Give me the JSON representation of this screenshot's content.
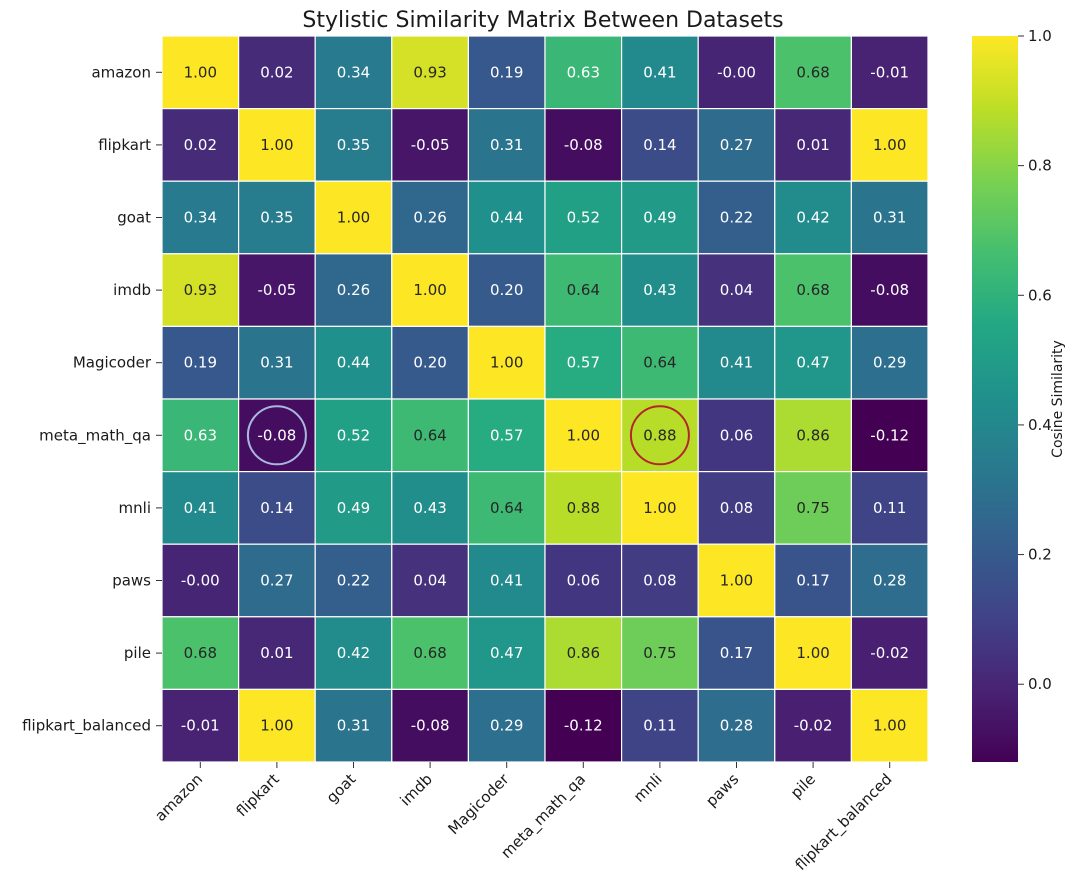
{
  "chart_data": {
    "type": "heatmap",
    "title": "Stylistic Similarity Matrix Between Datasets",
    "row_labels": [
      "amazon",
      "flipkart",
      "goat",
      "imdb",
      "Magicoder",
      "meta_math_qa",
      "mnli",
      "paws",
      "pile",
      "flipkart_balanced"
    ],
    "col_labels": [
      "amazon",
      "flipkart",
      "goat",
      "imdb",
      "Magicoder",
      "meta_math_qa",
      "mnli",
      "paws",
      "pile",
      "flipkart_balanced"
    ],
    "values": [
      [
        1.0,
        0.02,
        0.34,
        0.93,
        0.19,
        0.63,
        0.41,
        -0.0,
        0.68,
        -0.01
      ],
      [
        0.02,
        1.0,
        0.35,
        -0.05,
        0.31,
        -0.08,
        0.14,
        0.27,
        0.01,
        1.0
      ],
      [
        0.34,
        0.35,
        1.0,
        0.26,
        0.44,
        0.52,
        0.49,
        0.22,
        0.42,
        0.31
      ],
      [
        0.93,
        -0.05,
        0.26,
        1.0,
        0.2,
        0.64,
        0.43,
        0.04,
        0.68,
        -0.08
      ],
      [
        0.19,
        0.31,
        0.44,
        0.2,
        1.0,
        0.57,
        0.64,
        0.41,
        0.47,
        0.29
      ],
      [
        0.63,
        -0.08,
        0.52,
        0.64,
        0.57,
        1.0,
        0.88,
        0.06,
        0.86,
        -0.12
      ],
      [
        0.41,
        0.14,
        0.49,
        0.43,
        0.64,
        0.88,
        1.0,
        0.08,
        0.75,
        0.11
      ],
      [
        -0.0,
        0.27,
        0.22,
        0.04,
        0.41,
        0.06,
        0.08,
        1.0,
        0.17,
        0.28
      ],
      [
        0.68,
        0.01,
        0.42,
        0.68,
        0.47,
        0.86,
        0.75,
        0.17,
        1.0,
        -0.02
      ],
      [
        -0.01,
        1.0,
        0.31,
        -0.08,
        0.29,
        -0.12,
        0.11,
        0.28,
        -0.02,
        1.0
      ]
    ],
    "display_values": [
      [
        "1.00",
        "0.02",
        "0.34",
        "0.93",
        "0.19",
        "0.63",
        "0.41",
        "-0.00",
        "0.68",
        "-0.01"
      ],
      [
        "0.02",
        "1.00",
        "0.35",
        "-0.05",
        "0.31",
        "-0.08",
        "0.14",
        "0.27",
        "0.01",
        "1.00"
      ],
      [
        "0.34",
        "0.35",
        "1.00",
        "0.26",
        "0.44",
        "0.52",
        "0.49",
        "0.22",
        "0.42",
        "0.31"
      ],
      [
        "0.93",
        "-0.05",
        "0.26",
        "1.00",
        "0.20",
        "0.64",
        "0.43",
        "0.04",
        "0.68",
        "-0.08"
      ],
      [
        "0.19",
        "0.31",
        "0.44",
        "0.20",
        "1.00",
        "0.57",
        "0.64",
        "0.41",
        "0.47",
        "0.29"
      ],
      [
        "0.63",
        "-0.08",
        "0.52",
        "0.64",
        "0.57",
        "1.00",
        "0.88",
        "0.06",
        "0.86",
        "-0.12"
      ],
      [
        "0.41",
        "0.14",
        "0.49",
        "0.43",
        "0.64",
        "0.88",
        "1.00",
        "0.08",
        "0.75",
        "0.11"
      ],
      [
        "-0.00",
        "0.27",
        "0.22",
        "0.04",
        "0.41",
        "0.06",
        "0.08",
        "1.00",
        "0.17",
        "0.28"
      ],
      [
        "0.68",
        "0.01",
        "0.42",
        "0.68",
        "0.47",
        "0.86",
        "0.75",
        "0.17",
        "1.00",
        "-0.02"
      ],
      [
        "-0.01",
        "1.00",
        "0.31",
        "-0.08",
        "0.29",
        "-0.12",
        "0.11",
        "0.28",
        "-0.02",
        "1.00"
      ]
    ],
    "colormap": "viridis",
    "vmin": -0.12,
    "vmax": 1.0,
    "colorbar": {
      "label": "Cosine Similarity",
      "ticks": [
        0.0,
        0.2,
        0.4,
        0.6,
        0.8,
        1.0
      ],
      "tick_labels": [
        "0.0",
        "0.2",
        "0.4",
        "0.6",
        "0.8",
        "1.0"
      ]
    },
    "annotations": [
      {
        "row": 5,
        "col": 1,
        "shape": "circle",
        "color": "#a9b8e0"
      },
      {
        "row": 5,
        "col": 6,
        "shape": "circle",
        "color": "#b3262b"
      }
    ]
  }
}
